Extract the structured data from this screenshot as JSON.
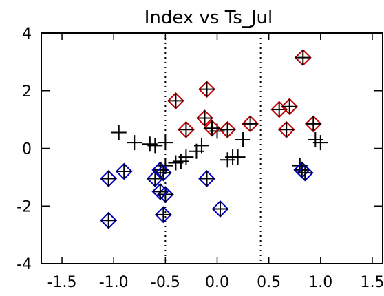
{
  "chart_data": {
    "type": "scatter",
    "title": "Index vs Ts_Jul",
    "xlabel": "",
    "ylabel": "",
    "xlim": [
      -1.7,
      1.6
    ],
    "ylim": [
      -4,
      4
    ],
    "xticks": [
      "-1.5",
      "-1.0",
      "-0.5",
      "0.0",
      "0.5",
      "1.0",
      "1.5"
    ],
    "xtick_values": [
      -1.5,
      -1.0,
      -0.5,
      0.0,
      0.5,
      1.0,
      1.5
    ],
    "yticks": [
      "-4",
      "-2",
      "0",
      "2",
      "4"
    ],
    "ytick_values": [
      -4,
      -2,
      0,
      2,
      4
    ],
    "vertical_lines": [
      -0.5,
      0.42
    ],
    "grid": false,
    "legend": "none",
    "series": [
      {
        "marker": "plus",
        "color": "#000000",
        "points": [
          [
            -0.95,
            0.55
          ],
          [
            -0.8,
            0.2
          ],
          [
            -0.65,
            0.15
          ],
          [
            -0.6,
            0.1
          ],
          [
            -0.5,
            0.2
          ],
          [
            -0.2,
            -0.1
          ],
          [
            -0.15,
            0.1
          ],
          [
            0.0,
            0.6
          ],
          [
            0.1,
            -0.4
          ],
          [
            0.15,
            -0.3
          ],
          [
            0.2,
            -0.3
          ],
          [
            0.25,
            0.3
          ],
          [
            0.95,
            0.3
          ],
          [
            1.0,
            0.2
          ],
          [
            0.8,
            -0.6
          ],
          [
            -0.4,
            -0.5
          ],
          [
            -0.35,
            -0.45
          ],
          [
            -0.3,
            -0.3
          ],
          [
            -0.5,
            -0.6
          ]
        ]
      },
      {
        "marker": "diamond-plus",
        "color": "#c00000",
        "points": [
          [
            -0.4,
            1.65
          ],
          [
            -0.3,
            0.65
          ],
          [
            -0.1,
            2.05
          ],
          [
            -0.12,
            1.05
          ],
          [
            -0.05,
            0.7
          ],
          [
            0.1,
            0.65
          ],
          [
            0.32,
            0.85
          ],
          [
            0.6,
            1.35
          ],
          [
            0.7,
            1.45
          ],
          [
            0.67,
            0.65
          ],
          [
            0.83,
            3.15
          ],
          [
            0.93,
            0.85
          ]
        ]
      },
      {
        "marker": "diamond-plus",
        "color": "#0000c0",
        "points": [
          [
            -1.05,
            -1.05
          ],
          [
            -0.9,
            -0.8
          ],
          [
            -1.05,
            -2.5
          ],
          [
            -0.6,
            -1.05
          ],
          [
            -0.55,
            -0.75
          ],
          [
            -0.52,
            -0.85
          ],
          [
            -0.5,
            -1.6
          ],
          [
            -0.55,
            -1.5
          ],
          [
            -0.52,
            -2.3
          ],
          [
            -0.1,
            -1.05
          ],
          [
            0.03,
            -2.1
          ],
          [
            0.82,
            -0.75
          ],
          [
            0.85,
            -0.85
          ]
        ]
      }
    ]
  }
}
